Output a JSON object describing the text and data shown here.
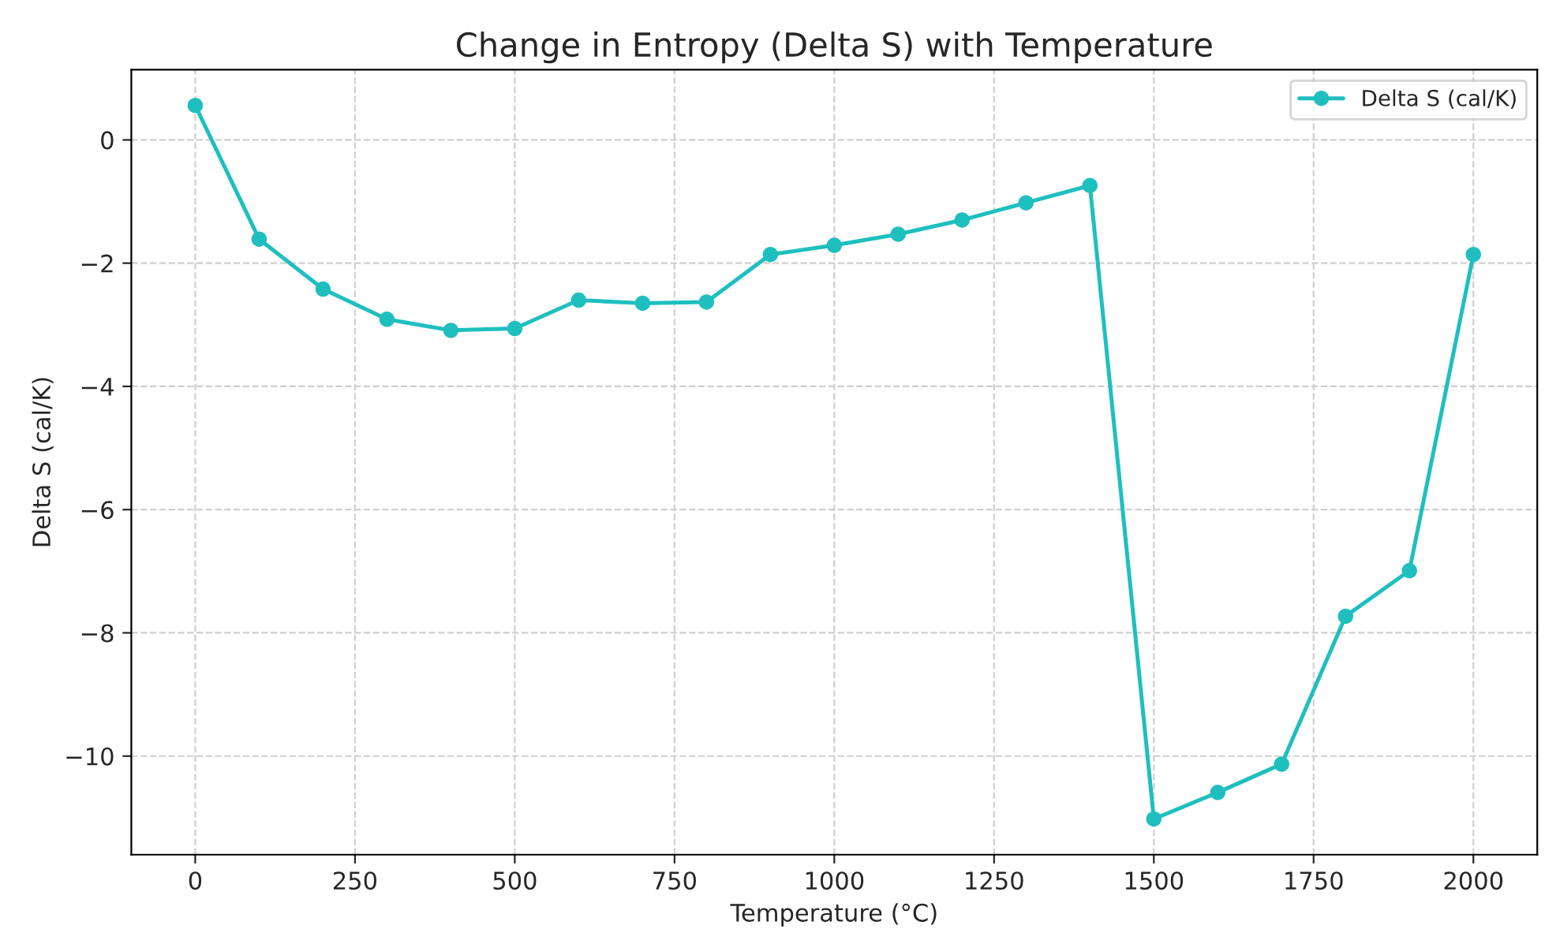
{
  "chart_data": {
    "type": "line",
    "title": "Change in Entropy (Delta S) with Temperature",
    "xlabel": "Temperature (°C)",
    "ylabel": "Delta S (cal/K)",
    "x": [
      0,
      100,
      200,
      300,
      400,
      500,
      600,
      700,
      800,
      900,
      1000,
      1100,
      1200,
      1300,
      1400,
      1500,
      1600,
      1700,
      1800,
      1900,
      2000
    ],
    "series": [
      {
        "name": "Delta S (cal/K)",
        "color": "#1fbfbf",
        "values": [
          0.56,
          -1.61,
          -2.42,
          -2.91,
          -3.09,
          -3.06,
          -2.6,
          -2.65,
          -2.63,
          -1.86,
          -1.71,
          -1.53,
          -1.3,
          -1.02,
          -0.74,
          -11.02,
          -10.59,
          -10.13,
          -7.73,
          -6.99,
          -1.86
        ]
      }
    ],
    "xlim": [
      -100,
      2100
    ],
    "xticks": [
      0,
      250,
      500,
      750,
      1000,
      1250,
      1500,
      1750,
      2000
    ],
    "ylim": [
      -11.6,
      1.14
    ],
    "yticks": [
      {
        "value": -10,
        "label": "−10"
      },
      {
        "value": -8,
        "label": "−8"
      },
      {
        "value": -6,
        "label": "−6"
      },
      {
        "value": -4,
        "label": "−4"
      },
      {
        "value": -2,
        "label": "−2"
      },
      0
    ],
    "grid": true,
    "legend": "top right",
    "marker": "circle",
    "line_style": "solid"
  }
}
